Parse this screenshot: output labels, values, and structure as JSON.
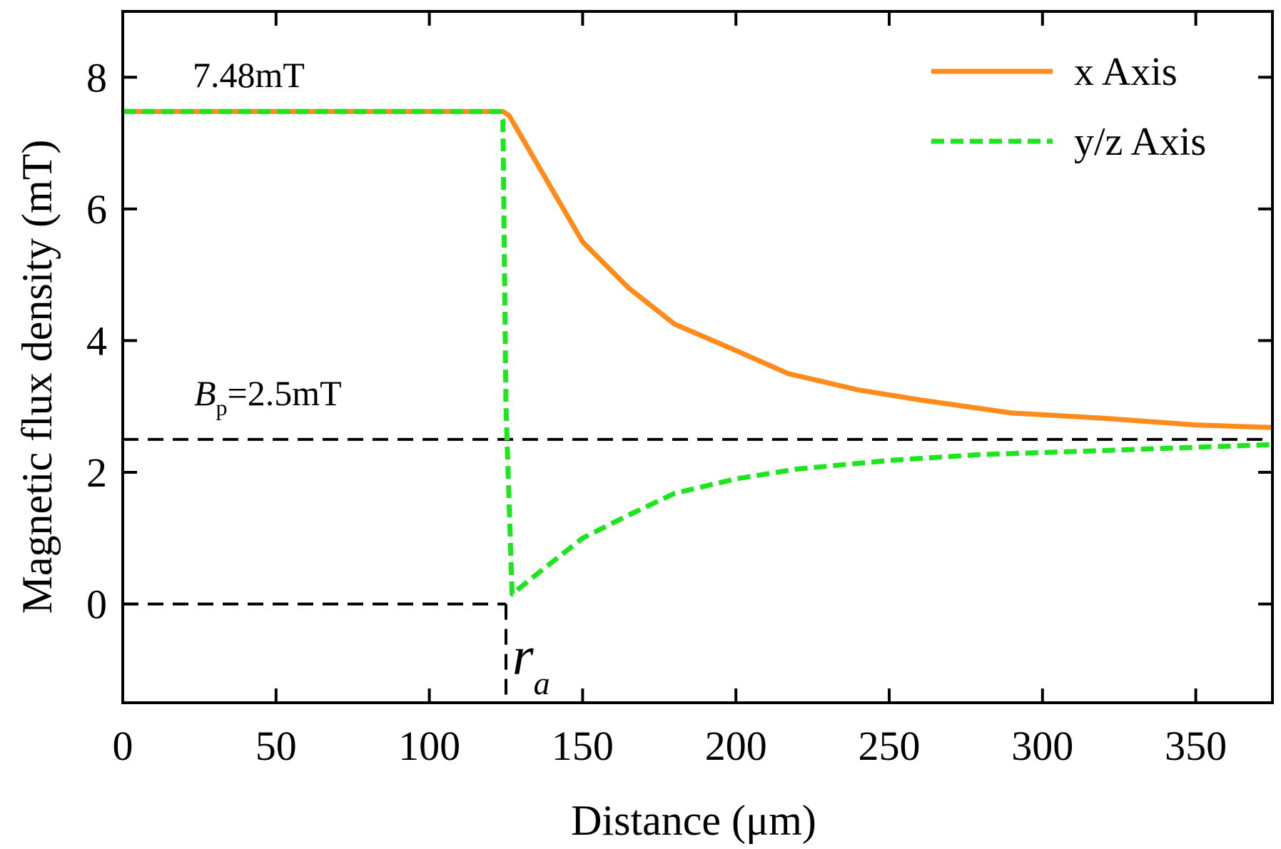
{
  "chart_data": {
    "type": "line",
    "title": "",
    "xlabel": "Distance (μm)",
    "ylabel": "Magnetic flux density (mT)",
    "xlim": [
      0,
      375
    ],
    "ylim": [
      -1.5,
      9
    ],
    "xticks": [
      0,
      50,
      100,
      150,
      200,
      250,
      300,
      350
    ],
    "yticks": [
      0,
      2,
      4,
      6,
      8
    ],
    "xtick_labels": [
      "0",
      "50",
      "100",
      "150",
      "200",
      "250",
      "300",
      "350"
    ],
    "ytick_labels": [
      "0",
      "2",
      "4",
      "6",
      "8"
    ],
    "legend_position": "top-right",
    "grid": false,
    "series": [
      {
        "name": "x Axis",
        "color": "#ff8c1a",
        "style": "solid",
        "x": [
          0,
          124,
          126,
          130,
          140,
          150,
          165,
          180,
          200,
          217,
          240,
          260,
          290,
          320,
          350,
          375
        ],
        "y": [
          7.48,
          7.48,
          7.42,
          7.1,
          6.3,
          5.5,
          4.8,
          4.25,
          3.85,
          3.5,
          3.25,
          3.1,
          2.9,
          2.82,
          2.72,
          2.68
        ]
      },
      {
        "name": "y/z Axis",
        "color": "#1ee61e",
        "style": "dashed",
        "x": [
          0,
          123,
          124,
          125,
          127,
          135,
          150,
          165,
          180,
          200,
          220,
          250,
          280,
          320,
          350,
          375
        ],
        "y": [
          7.48,
          7.48,
          7.35,
          3.0,
          0.15,
          0.45,
          1.0,
          1.35,
          1.68,
          1.9,
          2.05,
          2.18,
          2.27,
          2.33,
          2.38,
          2.42
        ]
      }
    ],
    "reference_lines": [
      {
        "type": "horizontal",
        "y": 2.5,
        "x_from": 0,
        "x_to": 375,
        "style": "dashed",
        "color": "#000000"
      },
      {
        "type": "horizontal",
        "y": 0,
        "x_from": 0,
        "x_to": 125,
        "style": "dashed",
        "color": "#000000"
      },
      {
        "type": "vertical",
        "x": 125,
        "y_from": 0,
        "y_to": -1.5,
        "style": "dashed",
        "color": "#000000"
      }
    ],
    "annotations": {
      "top_value": "7.48mT",
      "bp_letter": "B",
      "bp_sub": "p",
      "bp_value": "=2.5mT",
      "ra_letter": "r",
      "ra_sub": "a"
    }
  }
}
